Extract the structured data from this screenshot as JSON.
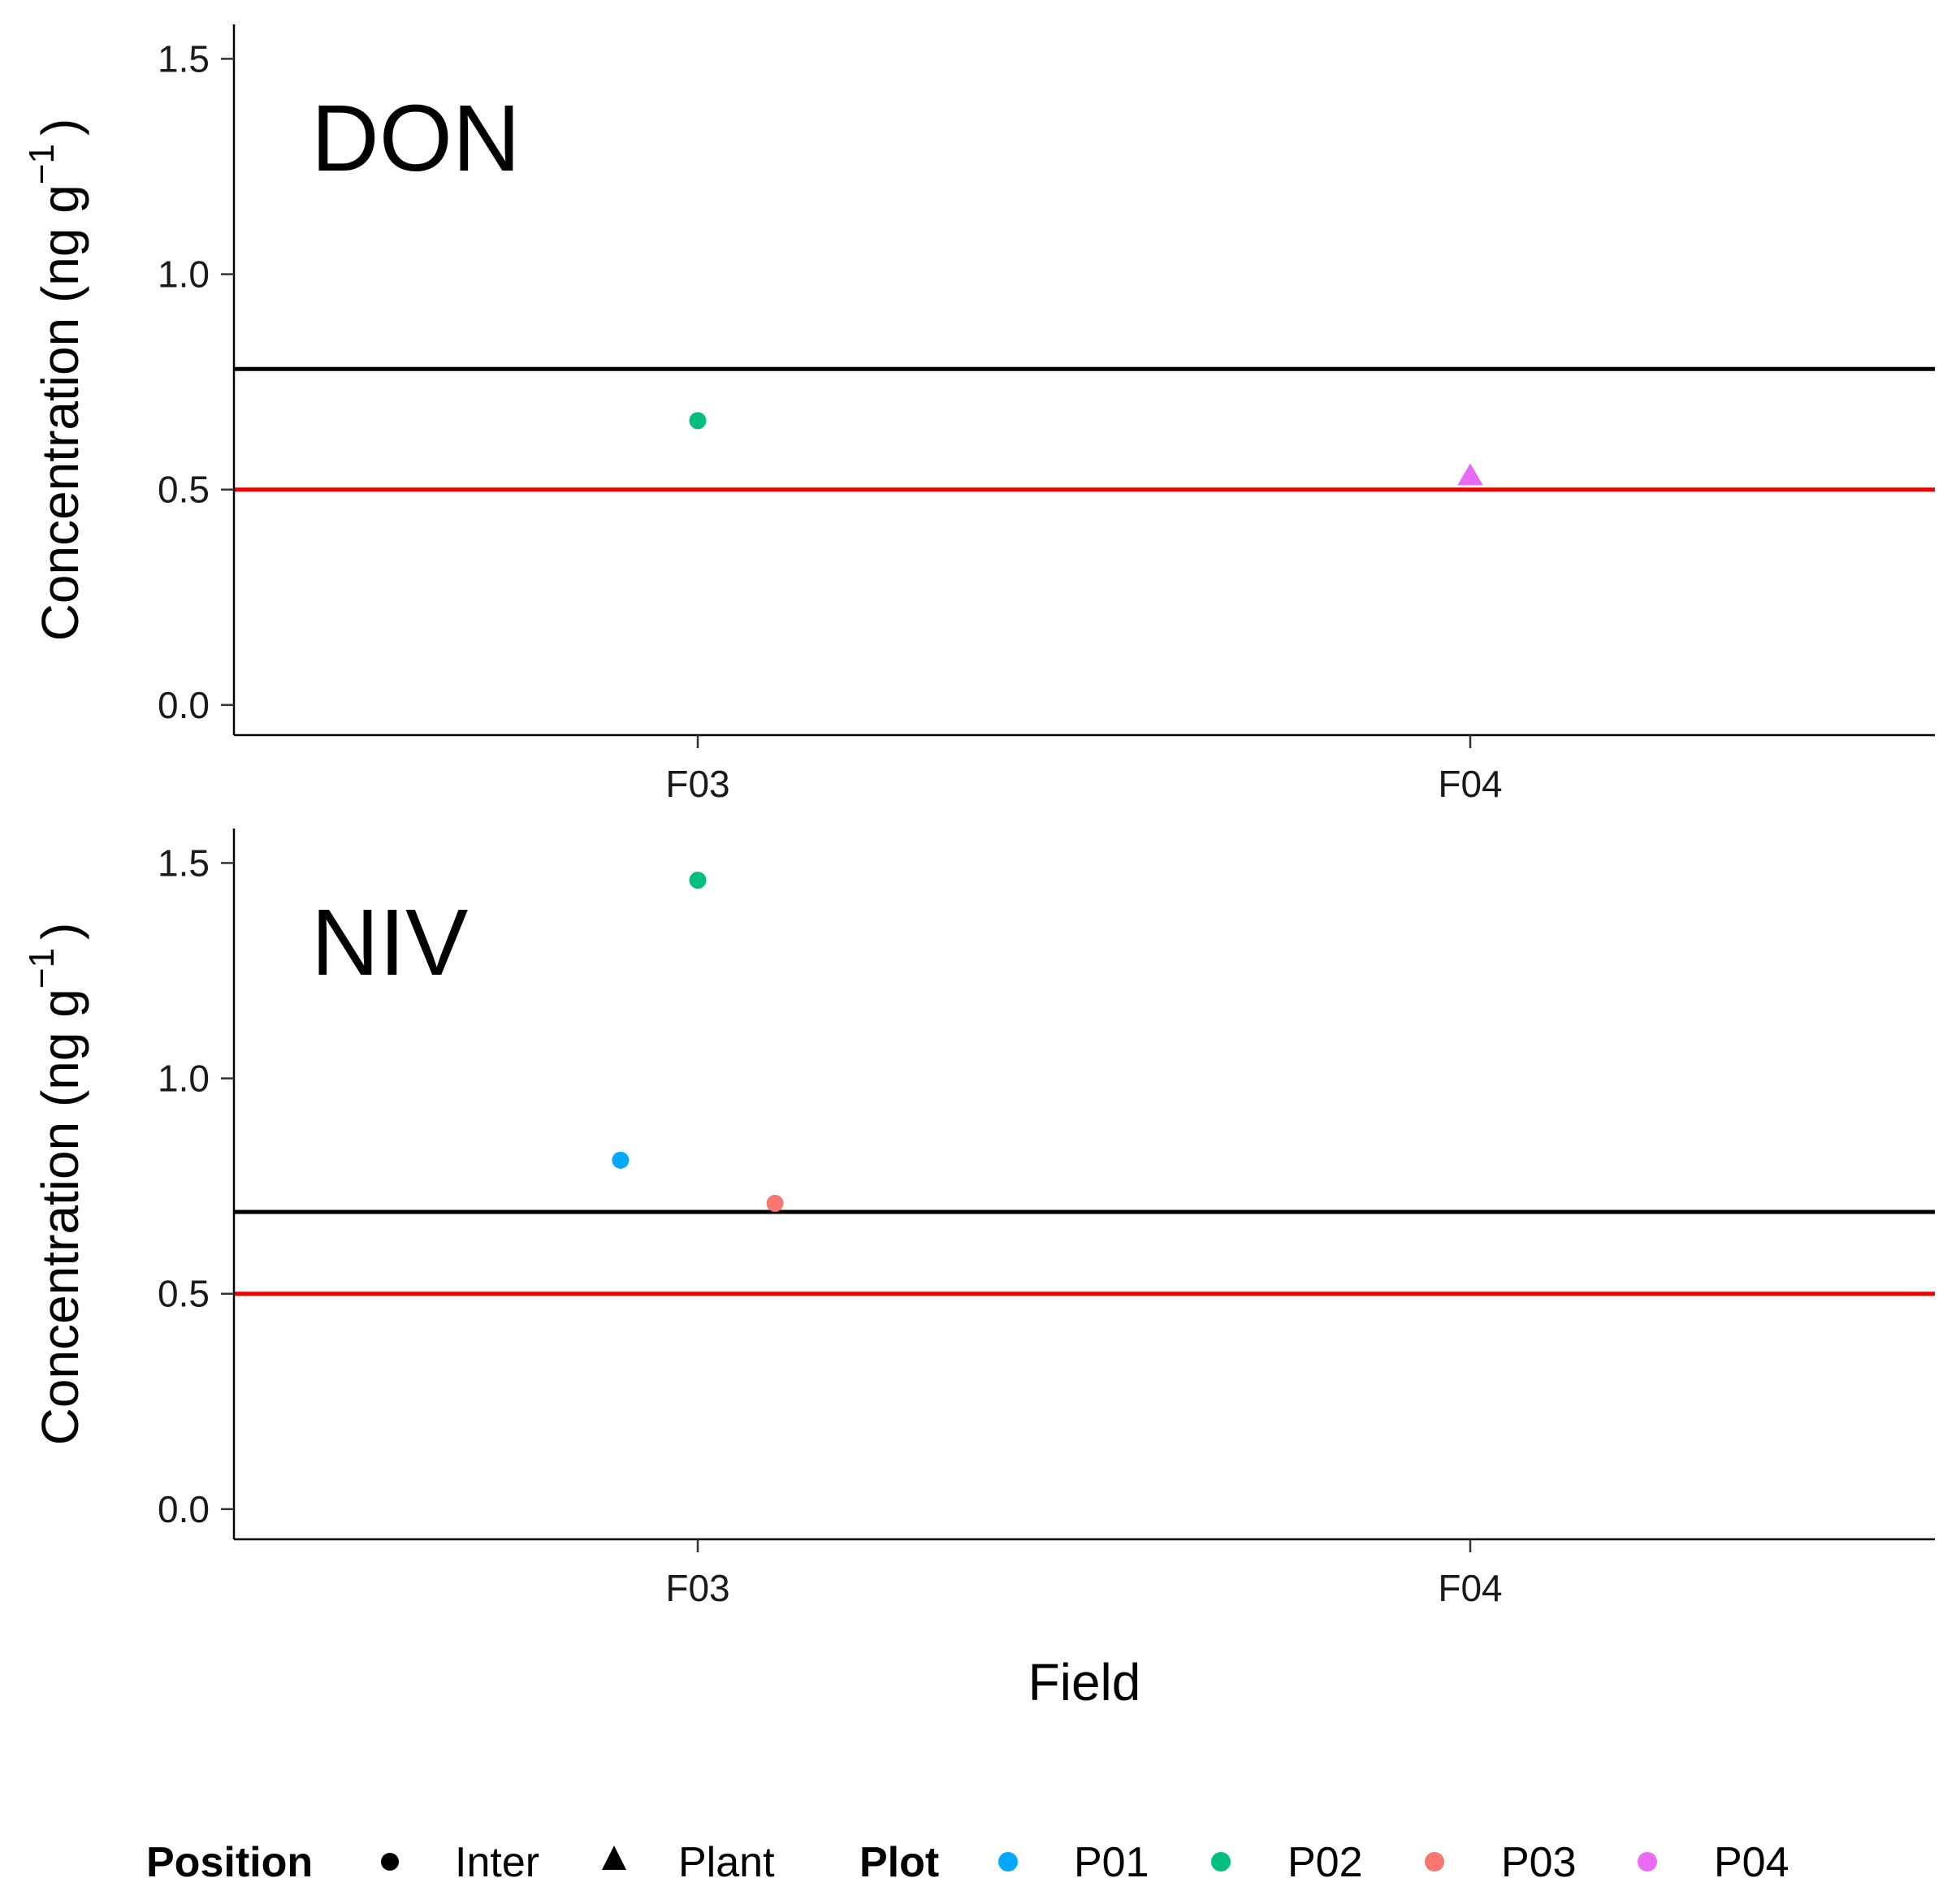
{
  "chart_data": [
    {
      "type": "scatter",
      "panel_label": "DON",
      "xlabel": "",
      "ylabel": "Concentration (ng g",
      "ylabel_superscript": "−1",
      "ylabel_close": ")",
      "categories": [
        "F03",
        "F04"
      ],
      "ylim": [
        -0.07,
        1.58
      ],
      "yticks": [
        "0.0",
        "0.5",
        "1.0",
        "1.5"
      ],
      "reference_lines": [
        {
          "y": 0.78,
          "color": "#000000"
        },
        {
          "y": 0.5,
          "color": "#ee0000"
        }
      ],
      "points": [
        {
          "category": "F03",
          "offset": 0.0,
          "y": 0.66,
          "plot": "P02",
          "position": "Inter"
        },
        {
          "category": "F04",
          "offset": 0.0,
          "y": 0.53,
          "plot": "P04",
          "position": "Plant"
        }
      ]
    },
    {
      "type": "scatter",
      "panel_label": "NIV",
      "xlabel": "Field",
      "ylabel": "Concentration (ng g",
      "ylabel_superscript": "−1",
      "ylabel_close": ")",
      "categories": [
        "F03",
        "F04"
      ],
      "ylim": [
        -0.07,
        1.58
      ],
      "yticks": [
        "0.0",
        "0.5",
        "1.0",
        "1.5"
      ],
      "reference_lines": [
        {
          "y": 0.69,
          "color": "#000000"
        },
        {
          "y": 0.5,
          "color": "#ee0000"
        }
      ],
      "points": [
        {
          "category": "F03",
          "offset": -0.1,
          "y": 0.81,
          "plot": "P01",
          "position": "Inter"
        },
        {
          "category": "F03",
          "offset": 0.0,
          "y": 1.46,
          "plot": "P02",
          "position": "Inter"
        },
        {
          "category": "F03",
          "offset": 0.1,
          "y": 0.71,
          "plot": "P03",
          "position": "Inter"
        }
      ]
    }
  ],
  "legend": {
    "position_title": "Position",
    "position_items": [
      {
        "label": "Inter",
        "shape": "circle"
      },
      {
        "label": "Plant",
        "shape": "triangle"
      }
    ],
    "plot_title": "Plot",
    "plot_items": [
      {
        "label": "P01",
        "color": "#00a9ff"
      },
      {
        "label": "P02",
        "color": "#00be7d"
      },
      {
        "label": "P03",
        "color": "#f8766d"
      },
      {
        "label": "P04",
        "color": "#e76bf3"
      }
    ],
    "placement": "bottom"
  }
}
